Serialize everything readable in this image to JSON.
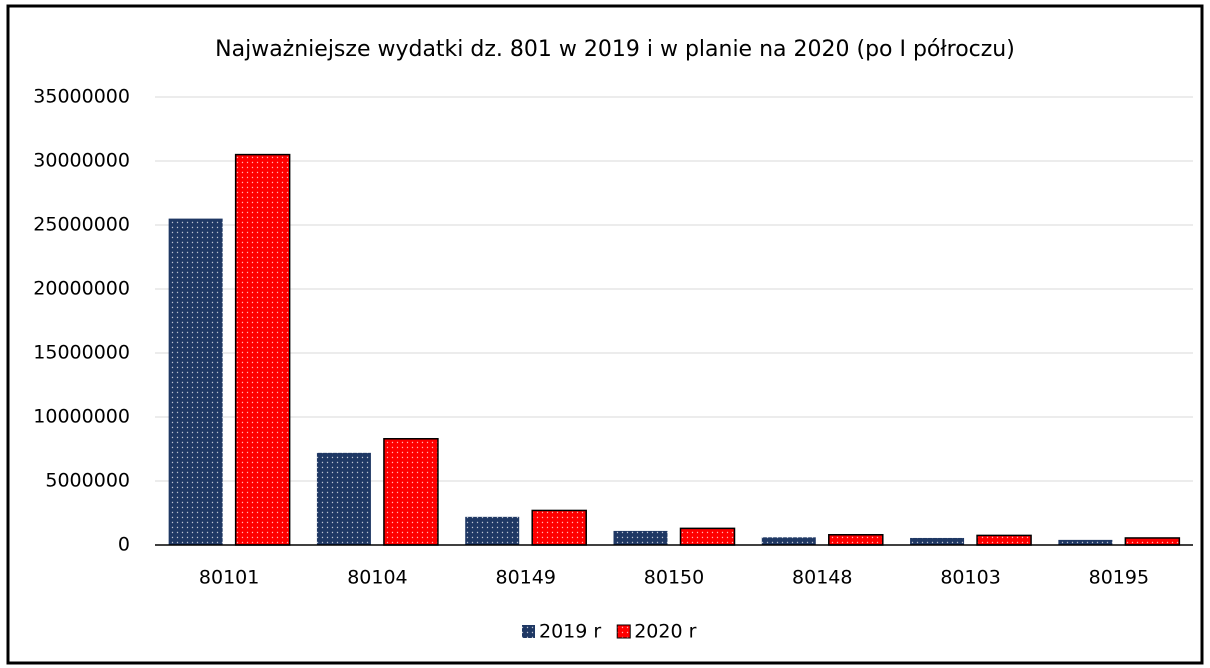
{
  "chart_data": {
    "type": "bar",
    "title": "Najważniejsze wydatki dz. 801 w 2019 i w planie na 2020 (po I półroczu)",
    "categories": [
      "80101",
      "80104",
      "80149",
      "80150",
      "80148",
      "80103",
      "80195"
    ],
    "series": [
      {
        "name": "2019 r",
        "color": "#1f3864",
        "values": [
          25500000,
          7200000,
          2200000,
          1100000,
          600000,
          550000,
          400000
        ]
      },
      {
        "name": "2020 r",
        "color": "#ff0000",
        "values": [
          30500000,
          8300000,
          2700000,
          1300000,
          800000,
          750000,
          550000
        ]
      }
    ],
    "ylim": [
      0,
      35000000
    ],
    "yticks": [
      0,
      5000000,
      10000000,
      15000000,
      20000000,
      25000000,
      30000000,
      35000000
    ],
    "grid": true,
    "legend": "bottom"
  }
}
